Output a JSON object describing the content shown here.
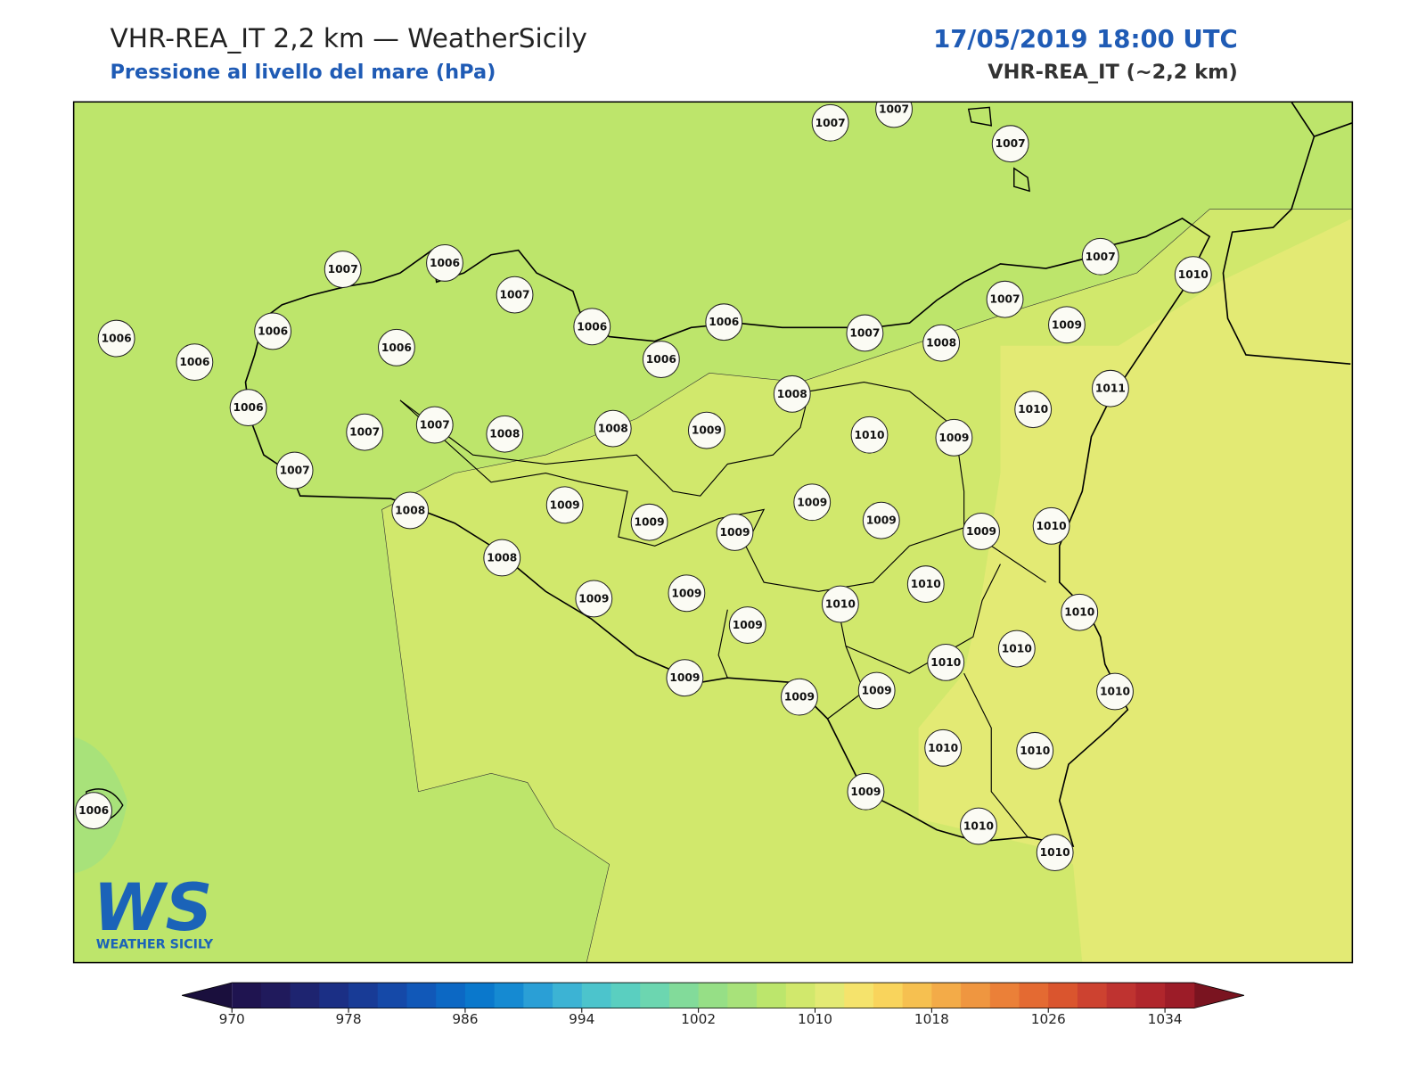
{
  "header": {
    "title": "VHR-REA_IT 2,2 km — WeatherSicily",
    "subtitle": "Pressione al livello del mare (hPa)",
    "datetime": "17/05/2019 18:00 UTC",
    "model": "VHR-REA_IT (~2,2 km)"
  },
  "stations": [
    1007,
    1007,
    1007,
    1006,
    1006,
    1006,
    1007,
    1006,
    1007,
    1006,
    1006,
    1006,
    1006,
    1007,
    1008,
    1007,
    1009,
    1007,
    1010,
    1006,
    1007,
    1007,
    1008,
    1008,
    1009,
    1008,
    1010,
    1009,
    1010,
    1011,
    1007,
    1008,
    1009,
    1009,
    1009,
    1009,
    1009,
    1009,
    1010,
    1008,
    1009,
    1009,
    1009,
    1010,
    1010,
    1010,
    1010,
    1010,
    1009,
    1009,
    1009,
    1010,
    1010,
    1010,
    1009,
    1010,
    1010,
    1006
  ],
  "colorbar": {
    "levels": [
      970,
      972,
      974,
      976,
      978,
      980,
      982,
      984,
      986,
      988,
      990,
      992,
      994,
      996,
      998,
      1000,
      1002,
      1004,
      1006,
      1008,
      1010,
      1012,
      1014,
      1016,
      1018,
      1020,
      1022,
      1024,
      1026,
      1028,
      1030,
      1032,
      1034,
      1036
    ],
    "colors": [
      "#1f1450",
      "#201a5c",
      "#1e2470",
      "#1b2f85",
      "#183b96",
      "#1549a8",
      "#1158b8",
      "#0c68c4",
      "#0a78cc",
      "#158ad2",
      "#2a9fd6",
      "#3cb3d4",
      "#4cc4cc",
      "#5acfc0",
      "#6cd6b0",
      "#82db9a",
      "#96df86",
      "#a8e27a",
      "#bce66c",
      "#d1e86c",
      "#e3ea74",
      "#f5e36c",
      "#f9d45c",
      "#f6c050",
      "#f3ab48",
      "#ef9640",
      "#eb8038",
      "#e46a32",
      "#da552e",
      "#cd4230",
      "#bf3330",
      "#b0262c",
      "#9c1c28"
    ],
    "under_color": "#1a0f3d",
    "over_color": "#7a1420",
    "ticks": [
      970,
      978,
      986,
      994,
      1002,
      1010,
      1018,
      1026,
      1034
    ]
  },
  "logo": {
    "initials": "WS",
    "name": "WEATHER SICILY"
  }
}
